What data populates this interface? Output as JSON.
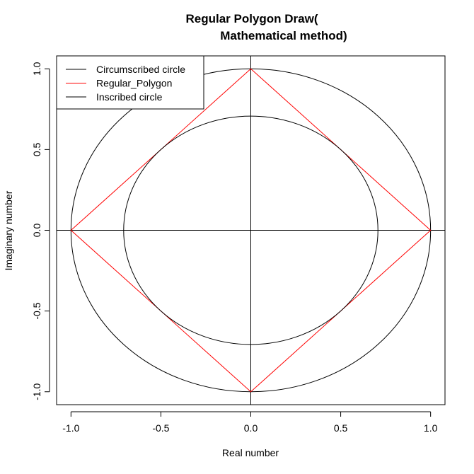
{
  "chart_data": {
    "type": "line",
    "title_line1": "Regular Polygon Draw(",
    "title_line2": "Mathematical method)",
    "xlabel": "Real number",
    "ylabel": "Imaginary number",
    "xlim": [
      -1.08,
      1.08
    ],
    "ylim": [
      -1.08,
      1.08
    ],
    "x_ticks": [
      -1.0,
      -0.5,
      0.0,
      0.5,
      1.0
    ],
    "x_tick_labels": [
      "-1.0",
      "-0.5",
      "0.0",
      "0.5",
      "1.0"
    ],
    "y_ticks": [
      -1.0,
      -0.5,
      0.0,
      0.5,
      1.0
    ],
    "y_tick_labels": [
      "-1.0",
      "-0.5",
      "0.0",
      "0.5",
      "1.0"
    ],
    "grid": false,
    "legend_position": "top-left",
    "reference_lines": {
      "horizontal_at_y": 0,
      "vertical_at_x": 0
    },
    "series": [
      {
        "name": "Circumscribed circle",
        "kind": "circle",
        "center": [
          0,
          0
        ],
        "radius": 1.0,
        "color": "#000000"
      },
      {
        "name": "Regular_Polygon",
        "kind": "polygon",
        "color": "#ff0000",
        "points": [
          [
            1,
            0
          ],
          [
            0,
            1
          ],
          [
            -1,
            0
          ],
          [
            0,
            -1
          ]
        ]
      },
      {
        "name": "Inscribed circle",
        "kind": "circle",
        "center": [
          0,
          0
        ],
        "radius": 0.7071,
        "color": "#000000"
      }
    ]
  }
}
